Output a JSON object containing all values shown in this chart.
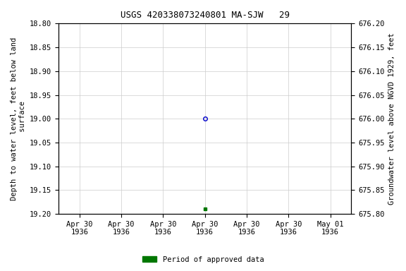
{
  "title": "USGS 420338073240801 MA-SJW   29",
  "ylabel_left": "Depth to water level, feet below land\n surface",
  "ylabel_right": "Groundwater level above NGVD 1929, feet",
  "ylim_left": [
    18.8,
    19.2
  ],
  "ylim_right": [
    675.8,
    676.2
  ],
  "y_ticks_left": [
    18.8,
    18.85,
    18.9,
    18.95,
    19.0,
    19.05,
    19.1,
    19.15,
    19.2
  ],
  "y_ticks_right": [
    675.8,
    675.85,
    675.9,
    675.95,
    676.0,
    676.05,
    676.1,
    676.15,
    676.2
  ],
  "data_point_value": 19.0,
  "data_point_marker": "o",
  "data_point_color": "#0000cc",
  "data_point_facecolor": "none",
  "data_point_size": 4,
  "green_square_value": 19.19,
  "green_square_color": "#007700",
  "green_square_marker": "s",
  "green_square_size": 3,
  "background_color": "#ffffff",
  "grid_color": "#cccccc",
  "title_fontsize": 9,
  "axis_label_fontsize": 7.5,
  "tick_fontsize": 7.5,
  "legend_label": "Period of approved data",
  "legend_color": "#007700",
  "x_tick_labels": [
    "Apr 30\n1936",
    "Apr 30\n1936",
    "Apr 30\n1936",
    "Apr 30\n1936",
    "Apr 30\n1936",
    "Apr 30\n1936",
    "May 01\n1936"
  ],
  "x_range_start_days": -3,
  "x_range_end_days": 3,
  "data_point_x_day": 0
}
